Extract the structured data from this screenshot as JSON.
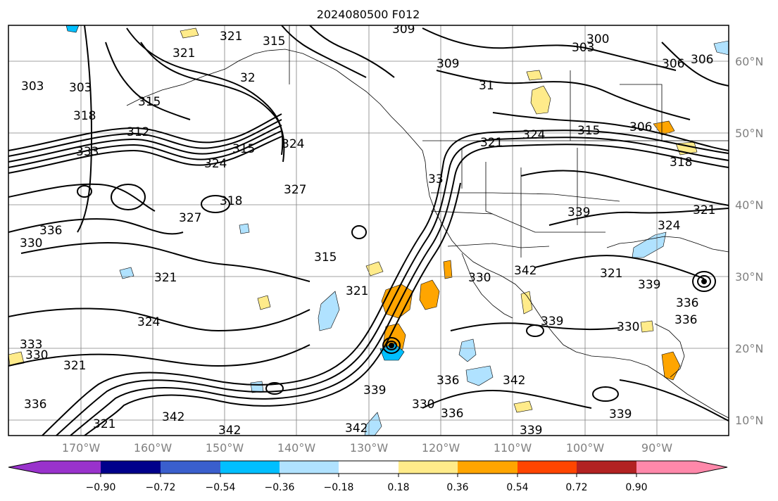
{
  "title": "2024080500 F012",
  "lat_labels": [
    "60°N",
    "50°N",
    "40°N",
    "30°N",
    "20°N",
    "10°N"
  ],
  "lon_labels": [
    "170°W",
    "160°W",
    "150°W",
    "140°W",
    "130°W",
    "120°W",
    "110°W",
    "100°W",
    "90°W"
  ],
  "colorbar": {
    "colors": [
      "#9932cc",
      "#00008b",
      "#3a5fcd",
      "#00bfff",
      "#b0e2ff",
      "#ffffff",
      "#ffeb8a",
      "#ffa500",
      "#ff4500",
      "#b22222",
      "#ff88aa"
    ],
    "ticks": [
      "−0.90",
      "−0.72",
      "−0.54",
      "−0.36",
      "−0.18",
      "0.18",
      "0.36",
      "0.54",
      "0.72",
      "0.90"
    ]
  },
  "contour_labels": [
    "321",
    "315",
    "309",
    "300",
    "303",
    "306",
    "303",
    "321",
    "32",
    "309",
    "31",
    "303",
    "306",
    "315",
    "312",
    "318",
    "333",
    "324",
    "315",
    "324",
    "327",
    "318",
    "327",
    "336",
    "330",
    "321",
    "315",
    "324",
    "321",
    "324",
    "315",
    "306",
    "318",
    "321",
    "324",
    "339",
    "321",
    "33",
    "330",
    "339",
    "342",
    "336",
    "339",
    "342",
    "336",
    "330",
    "336",
    "342",
    "339",
    "342",
    "339",
    "336",
    "330",
    "321",
    "339",
    "321",
    "342",
    "330",
    "336",
    "333",
    "321"
  ]
}
